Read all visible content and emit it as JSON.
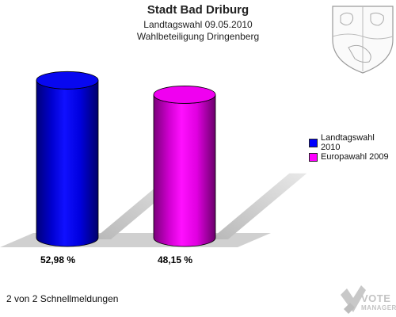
{
  "header": {
    "title": "Stadt Bad Driburg",
    "subtitle_line1": "Landtagswahl 09.05.2010",
    "subtitle_line2": "Wahlbeteiligung Dringenberg"
  },
  "footer": {
    "text": "2 von 2 Schnellmeldungen"
  },
  "brand": {
    "logo_text_top": "VOTE",
    "logo_text_bottom": "MANAGER"
  },
  "chart_data": {
    "type": "bar",
    "title": "Stadt Bad Driburg",
    "subtitle": "Landtagswahl 09.05.2010 / Wahlbeteiligung Dringenberg",
    "categories": [
      "Landtagswahl 2010",
      "Europawahl 2009"
    ],
    "values": [
      52.98,
      48.15
    ],
    "value_labels": [
      "52,98 %",
      "48,15 %"
    ],
    "colors": [
      "#0000ff",
      "#ff00ff"
    ],
    "ylim": [
      0,
      60
    ],
    "legend": {
      "position": "right",
      "entries": [
        {
          "name": "Landtagswahl 2010",
          "color": "#0000ff"
        },
        {
          "name": "Europawahl 2009",
          "color": "#ff00ff"
        }
      ]
    },
    "grid": false,
    "style": "3d-cylinder"
  }
}
